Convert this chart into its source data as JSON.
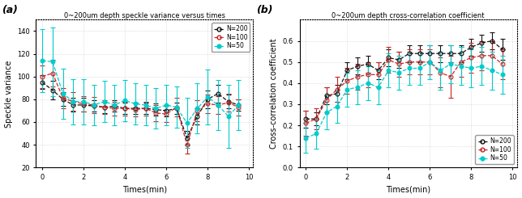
{
  "title_a": "0~200um depth speckle variance versus times",
  "title_b": "0~200um depth cross-correlation coefficient",
  "xlabel": "Times(min)",
  "ylabel_a": "Speckle variance",
  "ylabel_b": "Cross-correlation coefficient",
  "panel_a": "(a)",
  "panel_b": "(b)",
  "x": [
    0,
    0.5,
    1,
    1.5,
    2,
    2.5,
    3,
    3.5,
    4,
    4.5,
    5,
    5.5,
    6,
    6.5,
    7,
    7.5,
    8,
    8.5,
    9,
    9.5
  ],
  "sv_n200_mean": [
    95,
    88,
    80,
    75,
    75,
    74,
    73,
    74,
    72,
    72,
    72,
    71,
    70,
    72,
    46,
    65,
    80,
    85,
    78,
    75
  ],
  "sv_n200_err": [
    6,
    8,
    6,
    6,
    6,
    5,
    5,
    5,
    5,
    5,
    5,
    5,
    5,
    5,
    6,
    7,
    8,
    8,
    6,
    5
  ],
  "sv_n100_mean": [
    100,
    103,
    81,
    78,
    76,
    75,
    73,
    72,
    72,
    71,
    72,
    68,
    67,
    73,
    40,
    70,
    76,
    75,
    77,
    73
  ],
  "sv_n100_err": [
    10,
    12,
    9,
    8,
    7,
    7,
    6,
    6,
    6,
    6,
    6,
    7,
    7,
    8,
    8,
    9,
    8,
    8,
    8,
    7
  ],
  "sv_n50_mean": [
    114,
    113,
    85,
    78,
    78,
    75,
    78,
    75,
    79,
    76,
    75,
    72,
    75,
    73,
    59,
    72,
    82,
    75,
    65,
    75
  ],
  "sv_n50_err": [
    28,
    30,
    22,
    20,
    20,
    18,
    18,
    18,
    18,
    18,
    18,
    18,
    18,
    18,
    22,
    22,
    24,
    22,
    28,
    22
  ],
  "cc_n200_mean": [
    0.23,
    0.23,
    0.34,
    0.35,
    0.46,
    0.48,
    0.49,
    0.46,
    0.52,
    0.51,
    0.54,
    0.54,
    0.54,
    0.54,
    0.54,
    0.54,
    0.57,
    0.59,
    0.6,
    0.56
  ],
  "cc_n200_err": [
    0.04,
    0.03,
    0.04,
    0.04,
    0.04,
    0.04,
    0.04,
    0.04,
    0.04,
    0.04,
    0.04,
    0.04,
    0.04,
    0.04,
    0.04,
    0.04,
    0.04,
    0.04,
    0.04,
    0.05
  ],
  "cc_n100_mean": [
    0.21,
    0.23,
    0.32,
    0.37,
    0.41,
    0.43,
    0.44,
    0.44,
    0.51,
    0.49,
    0.5,
    0.5,
    0.5,
    0.45,
    0.43,
    0.5,
    0.52,
    0.53,
    0.53,
    0.49
  ],
  "cc_n100_err": [
    0.06,
    0.05,
    0.06,
    0.06,
    0.06,
    0.06,
    0.06,
    0.06,
    0.06,
    0.06,
    0.06,
    0.06,
    0.06,
    0.07,
    0.1,
    0.07,
    0.07,
    0.07,
    0.07,
    0.07
  ],
  "cc_n50_mean": [
    0.14,
    0.16,
    0.26,
    0.29,
    0.37,
    0.38,
    0.4,
    0.38,
    0.46,
    0.45,
    0.47,
    0.47,
    0.5,
    0.46,
    0.49,
    0.48,
    0.47,
    0.48,
    0.46,
    0.44
  ],
  "cc_n50_err": [
    0.07,
    0.07,
    0.08,
    0.08,
    0.08,
    0.08,
    0.08,
    0.08,
    0.08,
    0.08,
    0.08,
    0.08,
    0.08,
    0.09,
    0.09,
    0.09,
    0.09,
    0.09,
    0.09,
    0.09
  ],
  "color_n200": "#111111",
  "color_n100": "#cc2222",
  "color_n50": "#00cccc",
  "bg_color": "#ffffff",
  "ylim_a": [
    20,
    150
  ],
  "ylim_b": [
    0,
    0.7
  ],
  "yticks_a": [
    20,
    40,
    60,
    80,
    100,
    120,
    140
  ],
  "yticks_b": [
    0,
    0.1,
    0.2,
    0.3,
    0.4,
    0.5,
    0.6
  ],
  "xlim": [
    -0.3,
    10.2
  ],
  "xticks": [
    0,
    2,
    4,
    6,
    8,
    10
  ]
}
